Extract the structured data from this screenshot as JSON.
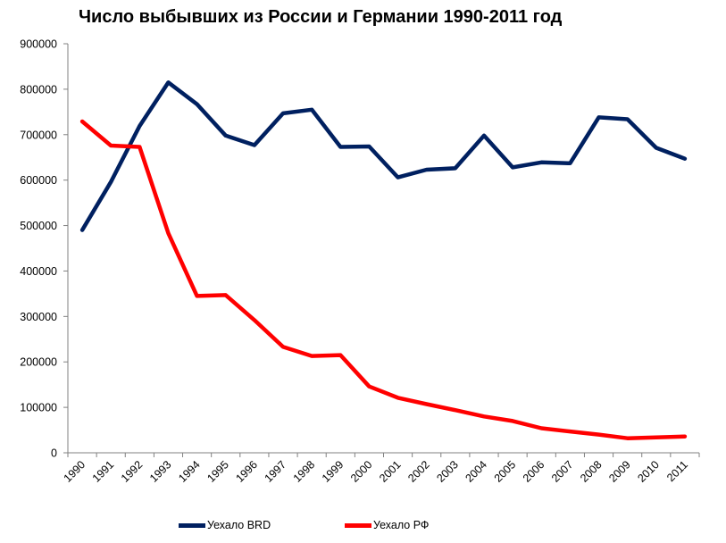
{
  "chart_data": {
    "type": "line",
    "title": "Число выбывших из России и Германии 1990-2011 год",
    "xlabel": "",
    "ylabel": "",
    "categories": [
      "1990",
      "1991",
      "1992",
      "1993",
      "1994",
      "1995",
      "1996",
      "1997",
      "1998",
      "1999",
      "2000",
      "2001",
      "2002",
      "2003",
      "2004",
      "2005",
      "2006",
      "2007",
      "2008",
      "2009",
      "2010",
      "2011"
    ],
    "y_ticks": [
      "0",
      "100000",
      "200000",
      "300000",
      "400000",
      "500000",
      "600000",
      "700000",
      "800000",
      "900000"
    ],
    "ylim": [
      0,
      900000
    ],
    "grid": false,
    "legend_position": "bottom",
    "series": [
      {
        "name": "Уехало BRD",
        "color": "#002060",
        "values": [
          490000,
          596000,
          719000,
          815000,
          767000,
          698000,
          677000,
          747000,
          755000,
          673000,
          674000,
          606000,
          623000,
          626000,
          698000,
          628000,
          639000,
          637000,
          738000,
          734000,
          671000,
          647000
        ]
      },
      {
        "name": "Уехало РФ",
        "color": "#ff0000",
        "values": [
          729000,
          676000,
          673000,
          483000,
          345000,
          347000,
          292000,
          233000,
          213000,
          215000,
          146000,
          121000,
          107000,
          94000,
          80000,
          70000,
          54000,
          47000,
          40000,
          32000,
          34000,
          36000
        ]
      }
    ]
  }
}
